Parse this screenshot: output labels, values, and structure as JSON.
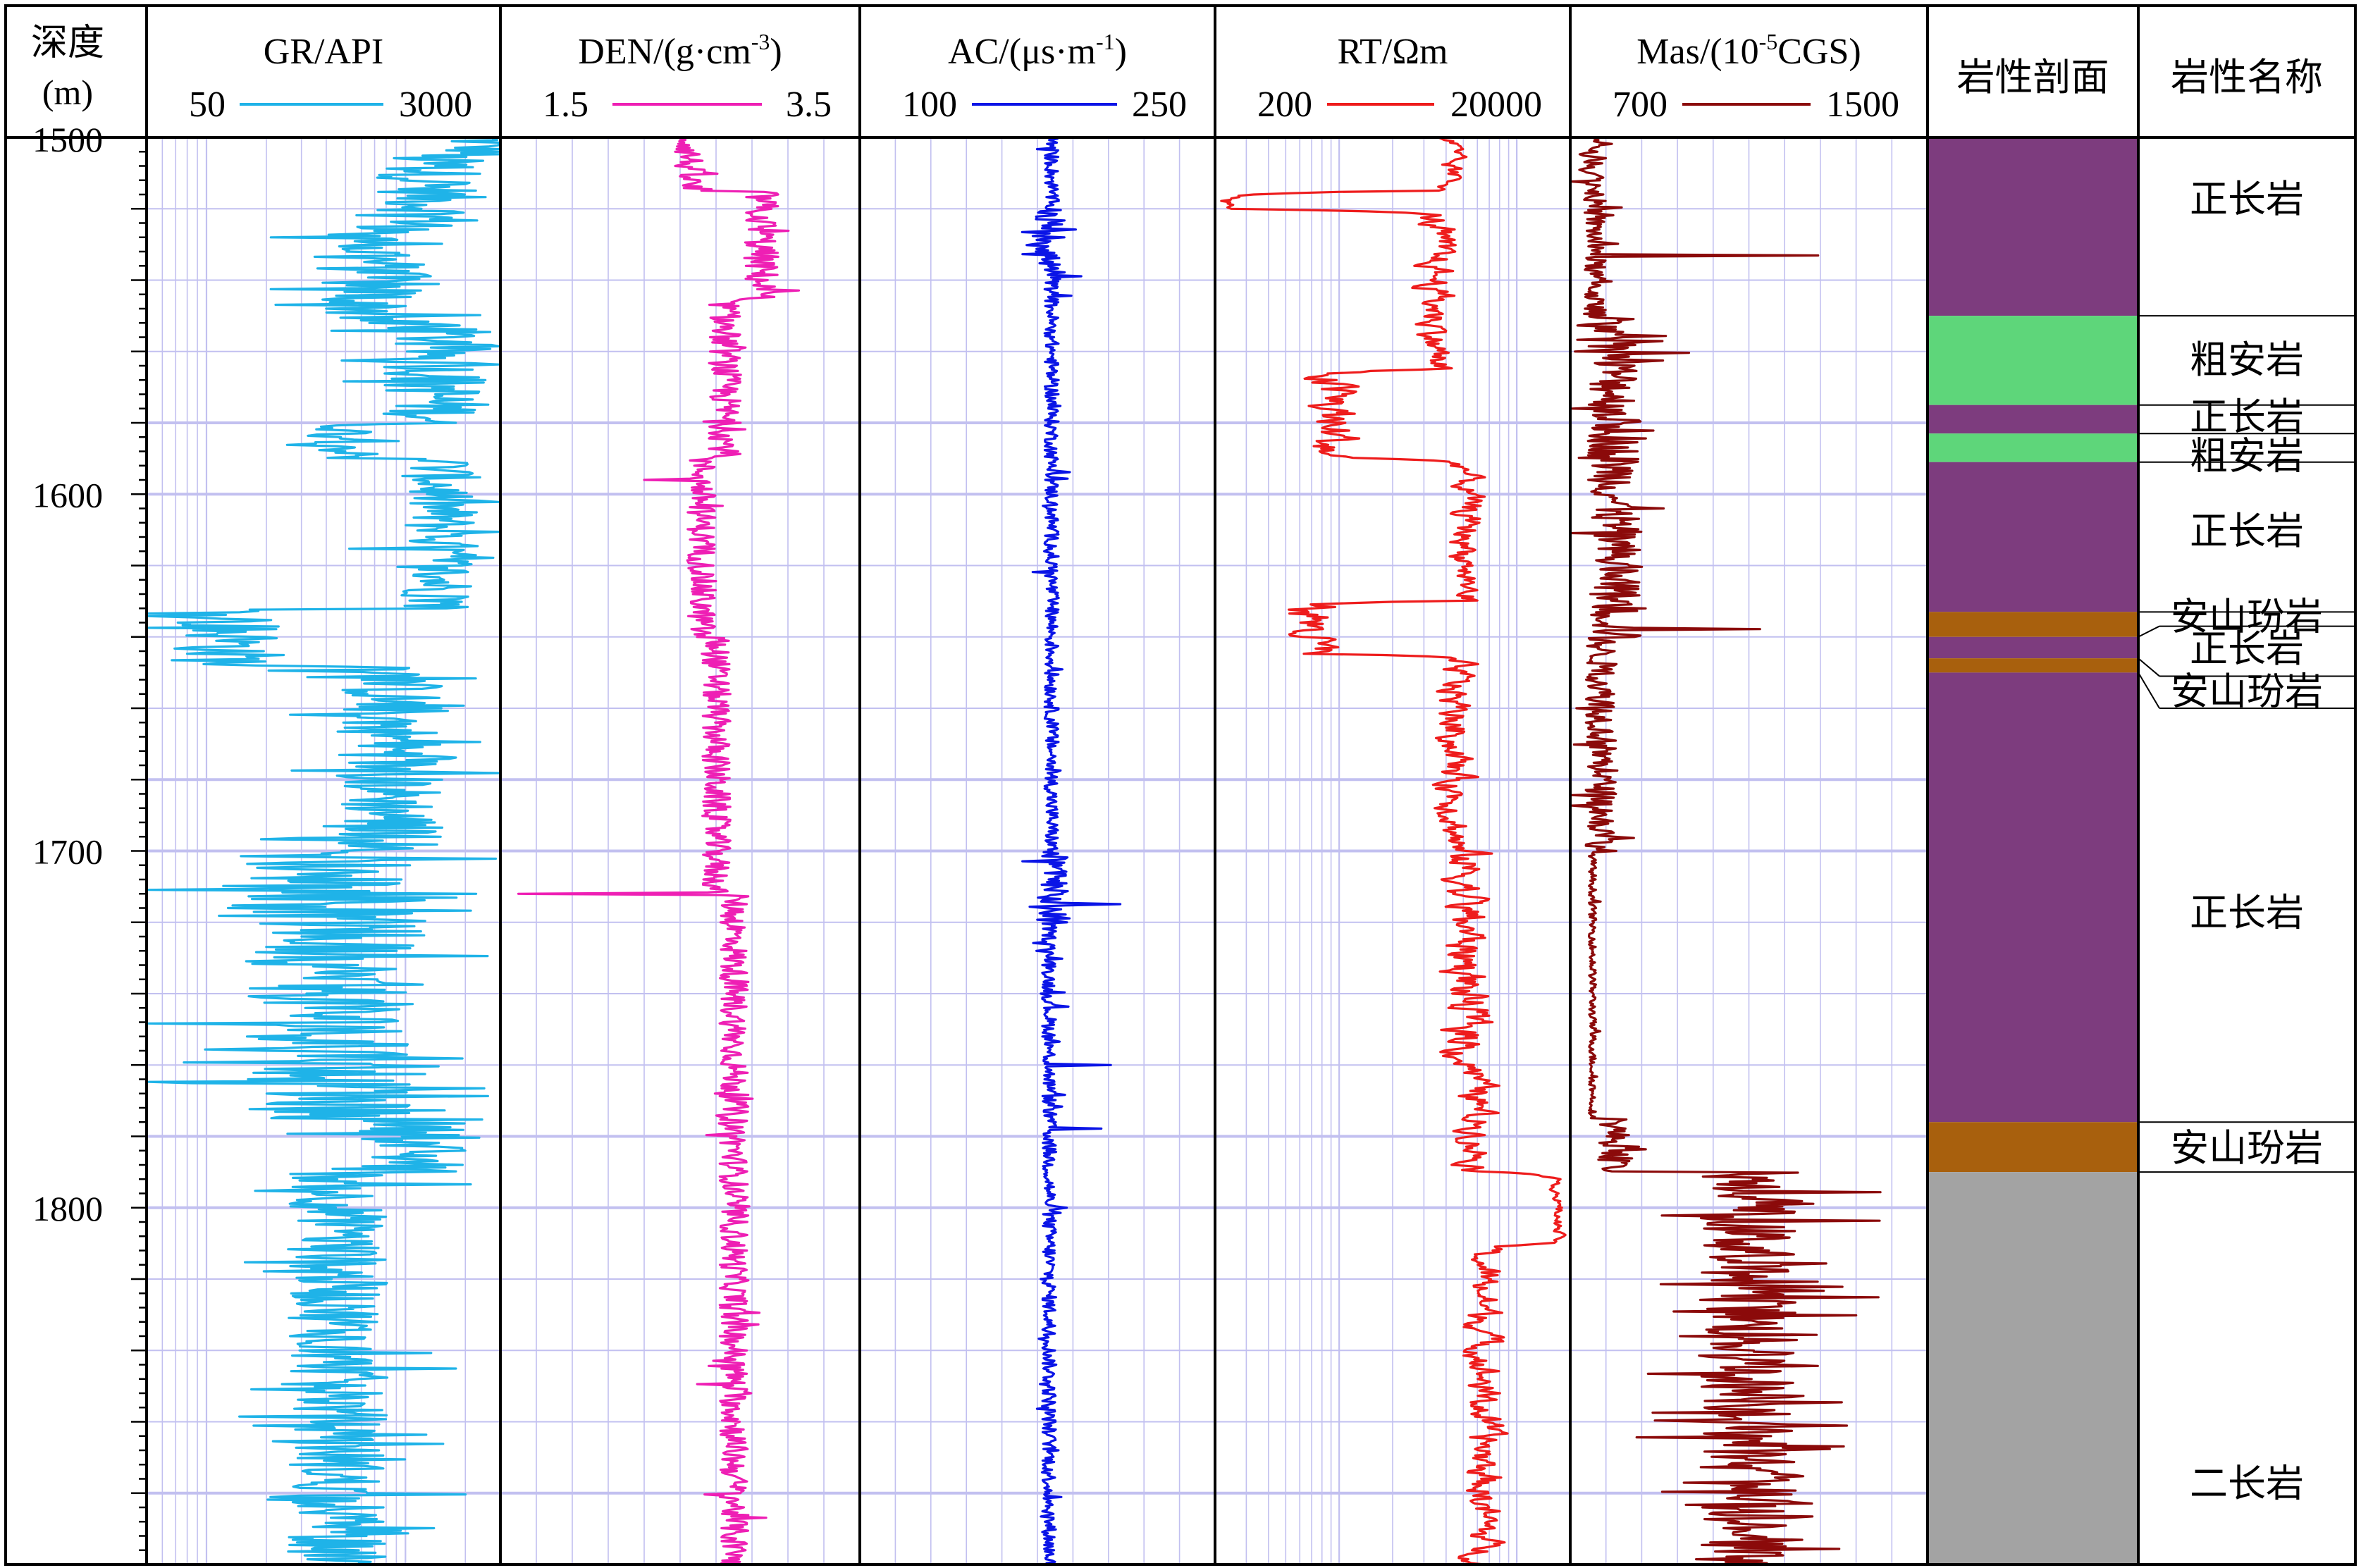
{
  "depth_track": {
    "title_line1": "深度",
    "title_line2": "(m)"
  },
  "chart_data": {
    "type": "line",
    "depth": {
      "min": 1500,
      "max": 1900,
      "tick_labels": [
        "1500",
        "1600",
        "1700",
        "1800"
      ],
      "tick_values": [
        1500,
        1600,
        1700,
        1800
      ]
    },
    "tracks": [
      {
        "key": "gr",
        "title": "GR/API",
        "unit_sup": "",
        "range_labels": [
          "50",
          "3000"
        ],
        "color": "#1fb3e8",
        "scale": "log",
        "min": 50,
        "max": 3000,
        "segments": [
          {
            "from": 1500,
            "to": 1505,
            "base": 2400,
            "noise": 0.45,
            "spike": 0.08
          },
          {
            "from": 1505,
            "to": 1525,
            "base": 1350,
            "noise": 0.55,
            "spike": 0.12
          },
          {
            "from": 1525,
            "to": 1552,
            "base": 680,
            "noise": 0.6,
            "spike": 0.15
          },
          {
            "from": 1552,
            "to": 1580,
            "base": 1450,
            "noise": 0.55,
            "spike": 0.12
          },
          {
            "from": 1580,
            "to": 1590,
            "base": 520,
            "noise": 0.35,
            "spike": 0.1
          },
          {
            "from": 1590,
            "to": 1632,
            "base": 1500,
            "noise": 0.4,
            "spike": 0.1
          },
          {
            "from": 1632,
            "to": 1648,
            "base": 130,
            "noise": 0.6,
            "spike": 0.15
          },
          {
            "from": 1648,
            "to": 1700,
            "base": 850,
            "noise": 0.55,
            "spike": 0.15
          },
          {
            "from": 1700,
            "to": 1775,
            "base": 420,
            "noise": 0.85,
            "spike": 0.22
          },
          {
            "from": 1775,
            "to": 1790,
            "base": 1100,
            "noise": 0.55,
            "spike": 0.12
          },
          {
            "from": 1790,
            "to": 1900,
            "base": 460,
            "noise": 0.5,
            "spike": 0.12
          }
        ]
      },
      {
        "key": "den",
        "title": "DEN/(g·cm",
        "unit_sup": "-3",
        "title_suffix": ")",
        "range_labels": [
          "1.5",
          "3.5"
        ],
        "color": "#ee1fb4",
        "scale": "linear",
        "min": 1.5,
        "max": 3.5,
        "segments": [
          {
            "from": 1500,
            "to": 1515,
            "base": 2.55,
            "noise": 0.09,
            "spike": 0.05
          },
          {
            "from": 1515,
            "to": 1545,
            "base": 2.95,
            "noise": 0.1,
            "spike": 0.06
          },
          {
            "from": 1545,
            "to": 1590,
            "base": 2.75,
            "noise": 0.09,
            "spike": 0.06
          },
          {
            "from": 1590,
            "to": 1640,
            "base": 2.62,
            "noise": 0.08,
            "spike": 0.05
          },
          {
            "from": 1640,
            "to": 1712,
            "base": 2.7,
            "noise": 0.08,
            "spike": 0.05
          },
          {
            "from": 1712,
            "to": 1900,
            "base": 2.8,
            "noise": 0.08,
            "spike": 0.05
          }
        ],
        "spikes": [
          {
            "depth": 1712,
            "value": 1.6
          },
          {
            "depth": 1596,
            "value": 2.3
          }
        ]
      },
      {
        "key": "ac",
        "title": "AC/(μs·m",
        "unit_sup": "-1",
        "title_suffix": ")",
        "range_labels": [
          "100",
          "250"
        ],
        "color": "#0a14e6",
        "scale": "linear",
        "min": 100,
        "max": 250,
        "segments": [
          {
            "from": 1500,
            "to": 1520,
            "base": 181,
            "noise": 3,
            "spike": 0.04
          },
          {
            "from": 1520,
            "to": 1540,
            "base": 180,
            "noise": 7,
            "spike": 0.2
          },
          {
            "from": 1540,
            "to": 1700,
            "base": 181,
            "noise": 3,
            "spike": 0.04
          },
          {
            "from": 1700,
            "to": 1720,
            "base": 181,
            "noise": 7,
            "spike": 0.15
          },
          {
            "from": 1720,
            "to": 1900,
            "base": 180,
            "noise": 3,
            "spike": 0.05
          }
        ],
        "spikes": [
          {
            "depth": 1715,
            "value": 210
          },
          {
            "depth": 1760,
            "value": 206
          },
          {
            "depth": 1778,
            "value": 202
          }
        ]
      },
      {
        "key": "rt",
        "title": "RT/Ωm",
        "unit_sup": "",
        "range_labels": [
          "200",
          "20000"
        ],
        "color": "#ee1c1c",
        "scale": "log",
        "min": 200,
        "max": 20000,
        "segments": [
          {
            "from": 1500,
            "to": 1515,
            "base": 4200,
            "noise": 0.25,
            "spike": 0
          },
          {
            "from": 1515,
            "to": 1520,
            "base": 230,
            "noise": 0.2,
            "spike": 0
          },
          {
            "from": 1520,
            "to": 1565,
            "base": 3500,
            "noise": 0.35,
            "spike": 0
          },
          {
            "from": 1565,
            "to": 1590,
            "base": 900,
            "noise": 0.6,
            "spike": 0
          },
          {
            "from": 1590,
            "to": 1630,
            "base": 5200,
            "noise": 0.3,
            "spike": 0
          },
          {
            "from": 1630,
            "to": 1645,
            "base": 700,
            "noise": 0.6,
            "spike": 0
          },
          {
            "from": 1645,
            "to": 1700,
            "base": 4500,
            "noise": 0.35,
            "spike": 0
          },
          {
            "from": 1700,
            "to": 1760,
            "base": 5200,
            "noise": 0.45,
            "spike": 0
          },
          {
            "from": 1760,
            "to": 1790,
            "base": 6000,
            "noise": 0.35,
            "spike": 0
          },
          {
            "from": 1790,
            "to": 1810,
            "base": 17000,
            "noise": 0.12,
            "spike": 0
          },
          {
            "from": 1810,
            "to": 1900,
            "base": 6500,
            "noise": 0.35,
            "spike": 0
          }
        ]
      },
      {
        "key": "mas",
        "title": "Mas/(10",
        "unit_sup": "-5",
        "title_suffix": "CGS)",
        "range_labels": [
          "700",
          "1500"
        ],
        "color": "#8b0a0a",
        "scale": "linear",
        "min": 700,
        "max": 1500,
        "segments": [
          {
            "from": 1500,
            "to": 1550,
            "base": 755,
            "noise": 25,
            "spike": 0.08
          },
          {
            "from": 1550,
            "to": 1640,
            "base": 800,
            "noise": 60,
            "spike": 0.15
          },
          {
            "from": 1640,
            "to": 1700,
            "base": 770,
            "noise": 35,
            "spike": 0.1
          },
          {
            "from": 1700,
            "to": 1775,
            "base": 750,
            "noise": 8,
            "spike": 0.03
          },
          {
            "from": 1775,
            "to": 1790,
            "base": 800,
            "noise": 35,
            "spike": 0.1
          },
          {
            "from": 1790,
            "to": 1900,
            "base": 1100,
            "noise": 110,
            "spike": 0.2
          }
        ],
        "spikes": [
          {
            "depth": 1533,
            "value": 1255
          },
          {
            "depth": 1638,
            "value": 1125
          },
          {
            "depth": 1825,
            "value": 1390
          }
        ]
      }
    ],
    "lithology": {
      "profile_title": "岩性剖面",
      "name_title": "岩性名称",
      "colors": {
        "正长岩": "#7d3c7e",
        "粗安岩": "#5ed67a",
        "安山玢岩": "#a8600d",
        "二长岩": "#a3a3a3"
      },
      "layers": [
        {
          "from": 1500,
          "to": 1550,
          "rock": "正长岩"
        },
        {
          "from": 1550,
          "to": 1575,
          "rock": "粗安岩"
        },
        {
          "from": 1575,
          "to": 1583,
          "rock": "正长岩"
        },
        {
          "from": 1583,
          "to": 1591,
          "rock": "粗安岩"
        },
        {
          "from": 1591,
          "to": 1633,
          "rock": "正长岩"
        },
        {
          "from": 1633,
          "to": 1640,
          "rock": "安山玢岩"
        },
        {
          "from": 1640,
          "to": 1646,
          "rock": "正长岩"
        },
        {
          "from": 1646,
          "to": 1650,
          "rock": "安山玢岩"
        },
        {
          "from": 1650,
          "to": 1776,
          "rock": "正长岩"
        },
        {
          "from": 1776,
          "to": 1790,
          "rock": "安山玢岩"
        },
        {
          "from": 1790,
          "to": 1900,
          "rock": "二长岩"
        }
      ],
      "labels": [
        {
          "text": "正长岩",
          "depth": 1517
        },
        {
          "text": "粗安岩",
          "depth": 1562
        },
        {
          "text": "正长岩",
          "depth": 1578
        },
        {
          "text": "粗安岩",
          "depth": 1589
        },
        {
          "text": "正长岩",
          "depth": 1610
        },
        {
          "text": "安山玢岩",
          "depth": 1634
        },
        {
          "text": "正长岩",
          "depth": 1643
        },
        {
          "text": "安山玢岩",
          "depth": 1655
        },
        {
          "text": "正长岩",
          "depth": 1717
        },
        {
          "text": "安山玢岩",
          "depth": 1783
        },
        {
          "text": "二长岩",
          "depth": 1877
        }
      ]
    }
  }
}
